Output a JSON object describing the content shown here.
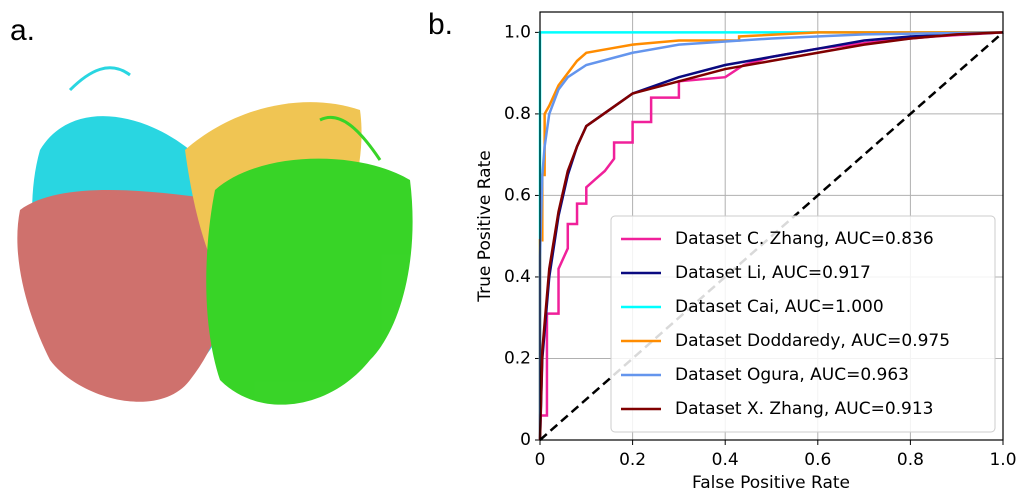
{
  "panel_labels": [
    "a.",
    "b."
  ],
  "chart_data": {
    "type": "line",
    "xlabel": "False Positive Rate",
    "ylabel": "True Positive Rate",
    "xlim": [
      0,
      1
    ],
    "ylim": [
      0,
      1.05
    ],
    "xticks": [
      0,
      0.2,
      0.4,
      0.6,
      0.8,
      {
        "value": 1,
        "label": "1.0"
      }
    ],
    "yticks": [
      0,
      0.2,
      0.4,
      0.6,
      0.8,
      {
        "value": 1,
        "label": "1.0"
      }
    ],
    "grid": true,
    "legend": "lower right",
    "series": [
      {
        "name": "Dataset C. Zhang, AUC=0.836",
        "color": "#f0209a",
        "x": [
          0,
          0,
          0.015,
          0.015,
          0.04,
          0.04,
          0.06,
          0.06,
          0.08,
          0.08,
          0.1,
          0.1,
          0.12,
          0.14,
          0.16,
          0.16,
          0.2,
          0.2,
          0.24,
          0.24,
          0.3,
          0.3,
          0.4,
          0.44,
          0.5,
          0.6,
          0.75,
          0.85,
          1
        ],
        "values": [
          0,
          0.06,
          0.06,
          0.31,
          0.31,
          0.42,
          0.47,
          0.53,
          0.53,
          0.58,
          0.58,
          0.62,
          0.64,
          0.66,
          0.69,
          0.73,
          0.73,
          0.78,
          0.78,
          0.84,
          0.84,
          0.88,
          0.89,
          0.92,
          0.94,
          0.96,
          0.98,
          0.99,
          1
        ]
      },
      {
        "name": "Dataset Li, AUC=0.917",
        "color": "#0a0a80",
        "x": [
          0,
          0.005,
          0.02,
          0.04,
          0.06,
          0.08,
          0.1,
          0.15,
          0.2,
          0.3,
          0.4,
          0.5,
          0.6,
          0.7,
          0.8,
          0.9,
          1
        ],
        "values": [
          0,
          0.2,
          0.4,
          0.55,
          0.65,
          0.72,
          0.77,
          0.81,
          0.85,
          0.89,
          0.92,
          0.94,
          0.96,
          0.98,
          0.99,
          0.995,
          1
        ]
      },
      {
        "name": "Dataset Cai, AUC=1.000",
        "color": "#00ffff",
        "x": [
          0,
          0,
          1
        ],
        "values": [
          0,
          1,
          1
        ]
      },
      {
        "name": "Dataset Doddaredy, AUC=0.975",
        "color": "#ff8c00",
        "x": [
          0,
          0,
          0.005,
          0.005,
          0.01,
          0.01,
          0.02,
          0.04,
          0.06,
          0.08,
          0.1,
          0.15,
          0.2,
          0.3,
          0.43,
          0.43,
          0.6,
          1
        ],
        "values": [
          0,
          0.49,
          0.49,
          0.65,
          0.65,
          0.8,
          0.82,
          0.87,
          0.9,
          0.93,
          0.95,
          0.96,
          0.97,
          0.98,
          0.98,
          0.99,
          1,
          1
        ]
      },
      {
        "name": "Dataset Ogura, AUC=0.963",
        "color": "#6495ed",
        "x": [
          0,
          0,
          0.005,
          0.01,
          0.02,
          0.04,
          0.06,
          0.1,
          0.2,
          0.3,
          0.5,
          0.7,
          1
        ],
        "values": [
          0,
          0.45,
          0.65,
          0.72,
          0.8,
          0.86,
          0.89,
          0.92,
          0.95,
          0.97,
          0.985,
          0.995,
          1
        ]
      },
      {
        "name": "Dataset X. Zhang, AUC=0.913",
        "color": "#800000",
        "x": [
          0,
          0.005,
          0.02,
          0.04,
          0.06,
          0.08,
          0.1,
          0.15,
          0.2,
          0.3,
          0.4,
          0.5,
          0.6,
          0.7,
          0.8,
          0.9,
          1
        ],
        "values": [
          0,
          0.22,
          0.42,
          0.56,
          0.66,
          0.72,
          0.77,
          0.81,
          0.85,
          0.88,
          0.91,
          0.93,
          0.95,
          0.97,
          0.985,
          0.995,
          1
        ]
      }
    ]
  }
}
